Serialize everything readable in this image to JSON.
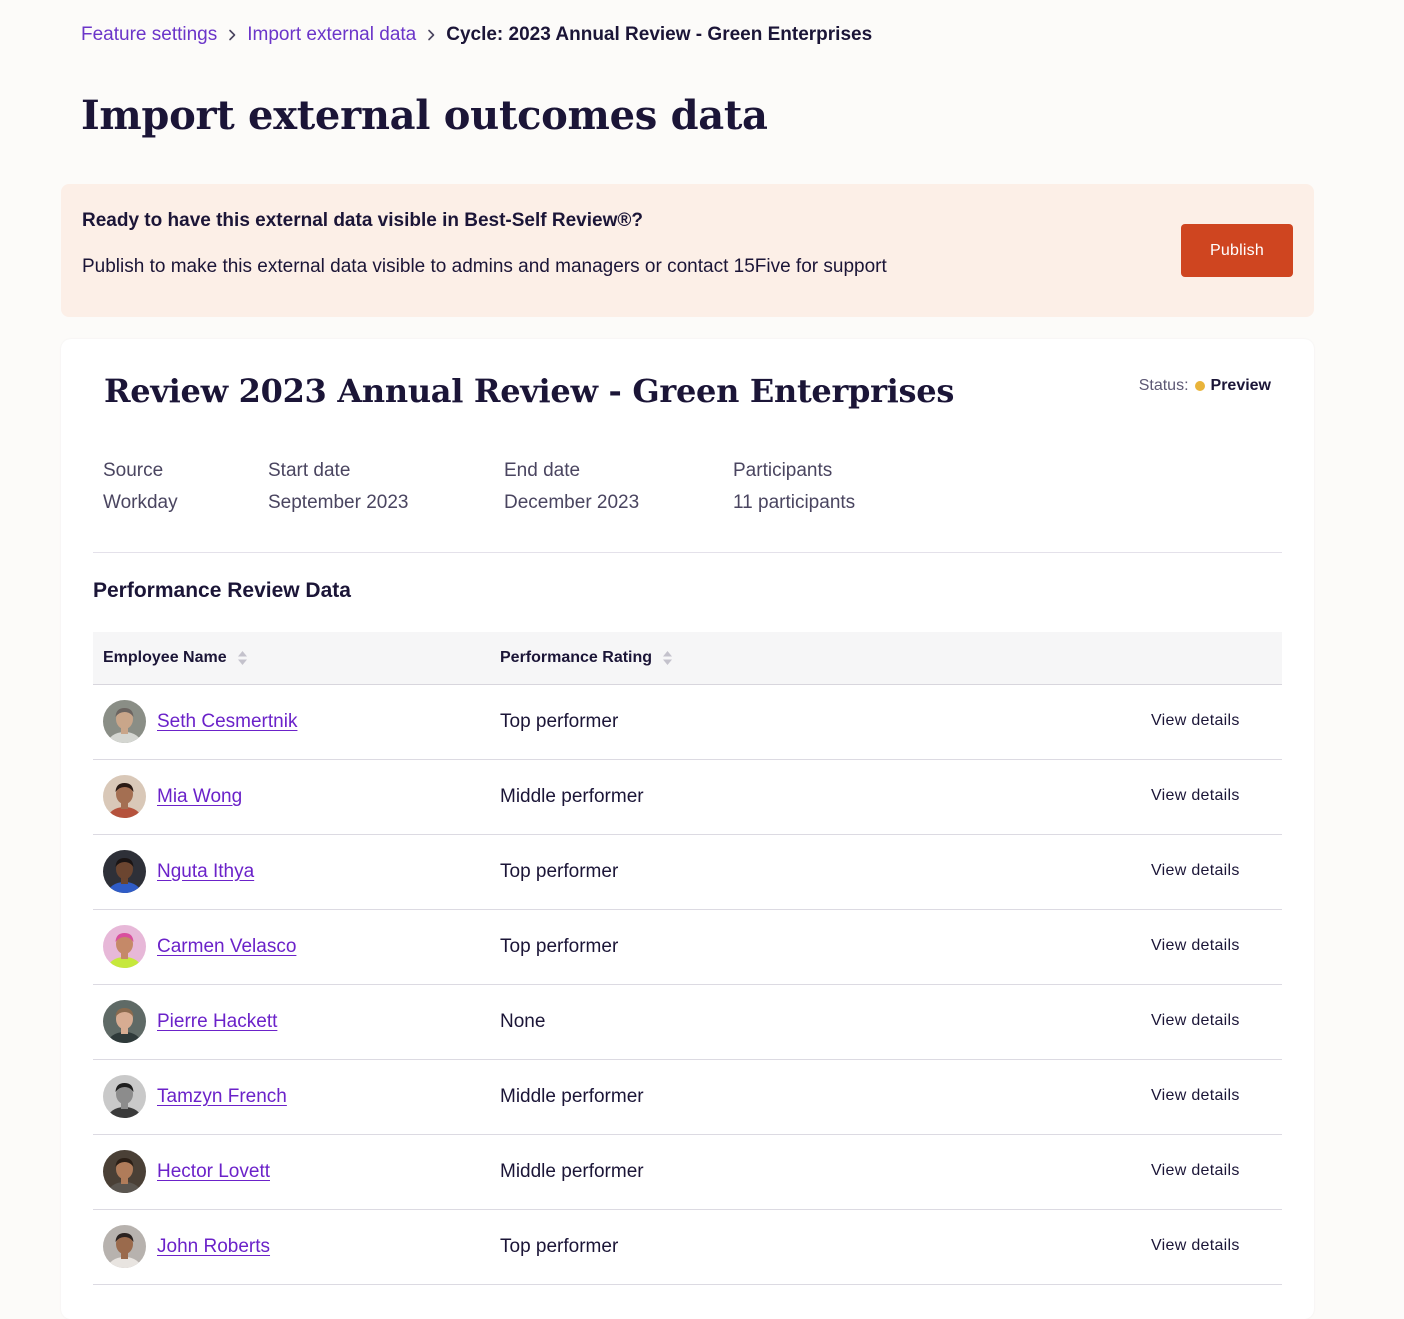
{
  "breadcrumb": {
    "items": [
      {
        "label": "Feature settings"
      },
      {
        "label": "Import external data"
      }
    ],
    "current": "Cycle: 2023 Annual Review - Green Enterprises"
  },
  "page": {
    "title": "Import external outcomes data"
  },
  "banner": {
    "heading": "Ready to have this external data visible in Best-Self Review®?",
    "text": "Publish to make this external data visible to admins and managers or contact 15Five for support",
    "button_label": "Publish"
  },
  "review": {
    "title": "Review 2023 Annual Review - Green Enterprises",
    "status_label": "Status:",
    "status_value": "Preview",
    "status_color": "#e9b43a",
    "meta": [
      {
        "label": "Source",
        "value": "Workday"
      },
      {
        "label": "Start date",
        "value": "September 2023"
      },
      {
        "label": "End date",
        "value": "December 2023"
      },
      {
        "label": "Participants",
        "value": "11 participants"
      }
    ]
  },
  "table": {
    "section_title": "Performance Review Data",
    "columns": [
      {
        "label": "Employee Name",
        "icon": "sort-icon"
      },
      {
        "label": "Performance Rating",
        "icon": "sort-icon"
      }
    ],
    "rows": [
      {
        "name": "Seth Cesmertnik",
        "rating": "Top performer",
        "action": "View details",
        "avatar": {
          "bg": "#8a8e86",
          "skin": "#c9a68a",
          "hair": "#6b6460",
          "shirt": "#d4d6d1"
        }
      },
      {
        "name": "Mia Wong",
        "rating": "Middle performer",
        "action": "View details",
        "avatar": {
          "bg": "#d9c8b8",
          "skin": "#a46f52",
          "hair": "#2a1a14",
          "shirt": "#b5523c"
        }
      },
      {
        "name": "Nguta Ithya",
        "rating": "Top performer",
        "action": "View details",
        "avatar": {
          "bg": "#2e3038",
          "skin": "#6b4530",
          "hair": "#1a1414",
          "shirt": "#2f5cc7"
        }
      },
      {
        "name": "Carmen Velasco",
        "rating": "Top performer",
        "action": "View details",
        "avatar": {
          "bg": "#e7b8d8",
          "skin": "#c58968",
          "hair": "#d94f9e",
          "shirt": "#c6e83c"
        }
      },
      {
        "name": "Pierre Hackett",
        "rating": "None",
        "action": "View details",
        "avatar": {
          "bg": "#5f6a66",
          "skin": "#d7ac92",
          "hair": "#8a6a4e",
          "shirt": "#2f3a3a"
        }
      },
      {
        "name": "Tamzyn French",
        "rating": "Middle performer",
        "action": "View details",
        "avatar": {
          "bg": "#c9c9c9",
          "skin": "#8c8c8c",
          "hair": "#1e1e1e",
          "shirt": "#3a3a3a"
        }
      },
      {
        "name": "Hector Lovett",
        "rating": "Middle performer",
        "action": "View details",
        "avatar": {
          "bg": "#4a4036",
          "skin": "#b07c5a",
          "hair": "#2b1f16",
          "shirt": "#5b5650"
        }
      },
      {
        "name": "John Roberts",
        "rating": "Top performer",
        "action": "View details",
        "avatar": {
          "bg": "#b7b2ae",
          "skin": "#9a6a4c",
          "hair": "#2a2220",
          "shirt": "#e8e4e0"
        }
      }
    ]
  },
  "icons": {
    "breadcrumb_separator": "chevron-right-icon",
    "sort": "sort-icon",
    "status": "status-dot-icon"
  },
  "colors": {
    "accent": "#6b35c9",
    "publish": "#cf4520",
    "banner_bg": "#fcefe7"
  }
}
